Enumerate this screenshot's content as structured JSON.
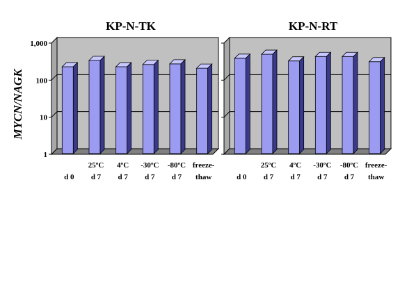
{
  "chart_data": [
    {
      "type": "bar",
      "title": "KP-N-TK",
      "ylabel": "MYCN/NAGK",
      "yscale": "log",
      "ylim": [
        1,
        1000
      ],
      "yticks": [
        "1",
        "10",
        "100",
        "1,000"
      ],
      "grid": "horizontal major lines",
      "categories": [
        [
          "d 0"
        ],
        [
          "25ºC",
          "d 7"
        ],
        [
          "4ºC",
          "d 7"
        ],
        [
          "-30ºC",
          "d 7"
        ],
        [
          "-80ºC",
          "d 7"
        ],
        [
          "freeze-",
          "thaw"
        ]
      ],
      "values": [
        230,
        340,
        230,
        265,
        275,
        210
      ]
    },
    {
      "type": "bar",
      "title": "KP-N-RT",
      "ylabel": "",
      "yscale": "log",
      "ylim": [
        1,
        1000
      ],
      "yticks": [
        "1",
        "10",
        "100",
        "1,000"
      ],
      "grid": "horizontal major lines",
      "categories": [
        [
          "d 0"
        ],
        [
          "25ºC",
          "d 7"
        ],
        [
          "4ºC",
          "d 7"
        ],
        [
          "-30ºC",
          "d 7"
        ],
        [
          "-80ºC",
          "d 7"
        ],
        [
          "freeze-",
          "thaw"
        ]
      ],
      "values": [
        390,
        500,
        330,
        435,
        435,
        315
      ]
    }
  ],
  "colors": {
    "bar_front": "#9b9bf2",
    "bar_top": "#c8c8ff",
    "bar_side": "#3a3a8c",
    "wall": "#c0c0c0",
    "floor": "#808080",
    "gridline": "#000000"
  }
}
